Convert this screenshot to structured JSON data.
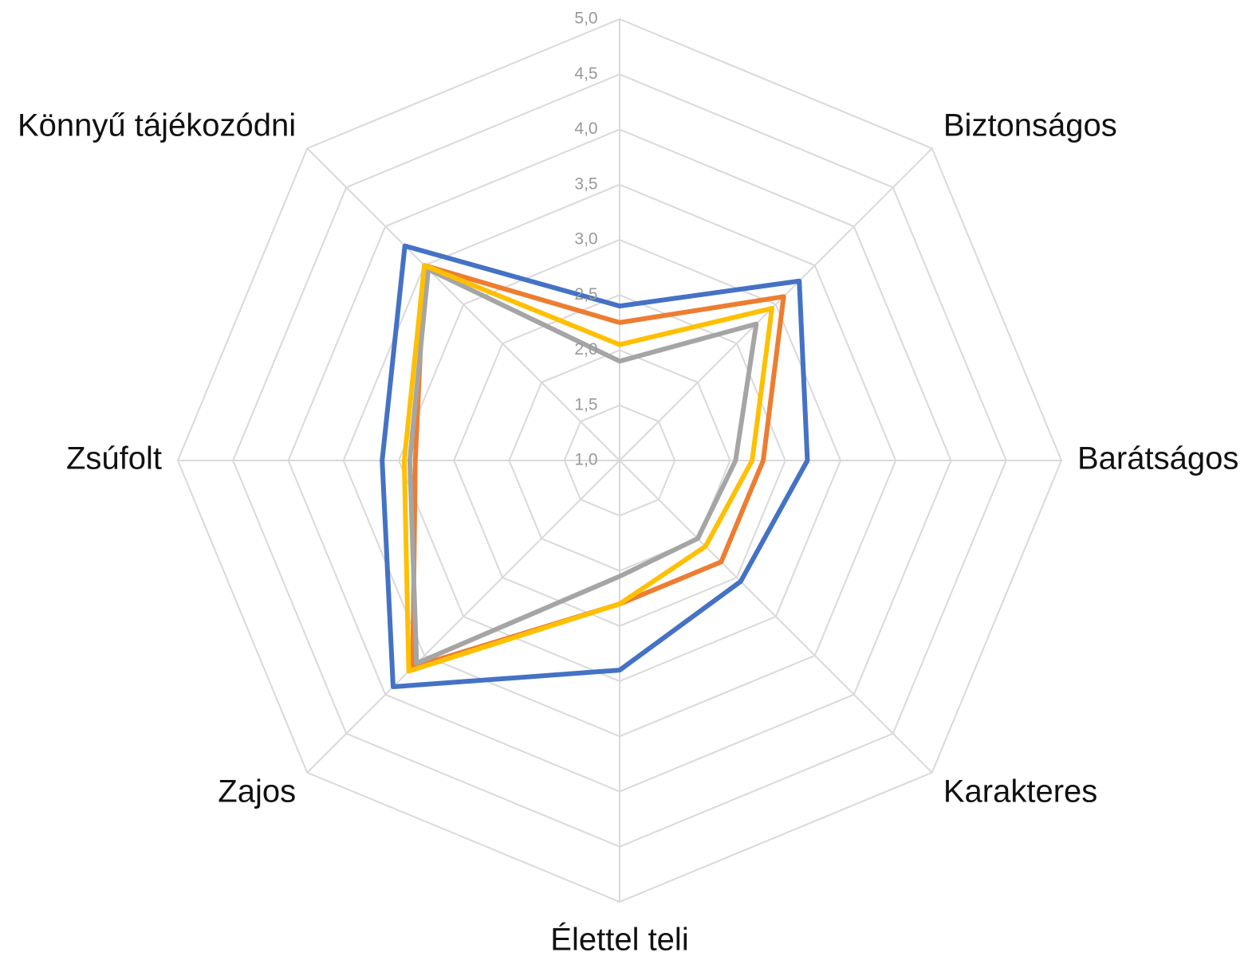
{
  "chart_data": {
    "type": "radar",
    "categories": [
      null,
      "Biztonságos",
      "Barátságos",
      "Karakteres",
      "Élettel teli",
      "Zajos",
      "Zsúfolt",
      "Könnyű tájékozódni"
    ],
    "series": [
      {
        "color": "#4472c4",
        "values": [
          2.4,
          3.3,
          2.7,
          2.55,
          2.9,
          3.9,
          3.15,
          3.75
        ]
      },
      {
        "color": "#ed7d31",
        "values": [
          2.25,
          3.1,
          2.3,
          2.3,
          2.3,
          3.65,
          2.85,
          3.5
        ]
      },
      {
        "color": "#a5a5a5",
        "values": [
          1.9,
          2.75,
          2.05,
          2.0,
          2.05,
          3.6,
          2.9,
          3.45
        ]
      },
      {
        "color": "#ffc000",
        "values": [
          2.05,
          2.95,
          2.2,
          2.1,
          2.3,
          3.7,
          2.95,
          3.5
        ]
      }
    ],
    "ylim": [
      1,
      5
    ],
    "yticks": [
      {
        "value": 1,
        "label": "1,0"
      },
      {
        "value": 1.5,
        "label": "1,5"
      },
      {
        "value": 2,
        "label": "2,0"
      },
      {
        "value": 2.5,
        "label": "2,5"
      },
      {
        "value": 3,
        "label": "3,0"
      },
      {
        "value": 3.5,
        "label": "3,5"
      },
      {
        "value": 4,
        "label": "4,0"
      },
      {
        "value": 4.5,
        "label": "4,5"
      },
      {
        "value": 5,
        "label": "5,0"
      }
    ],
    "grid": true
  }
}
